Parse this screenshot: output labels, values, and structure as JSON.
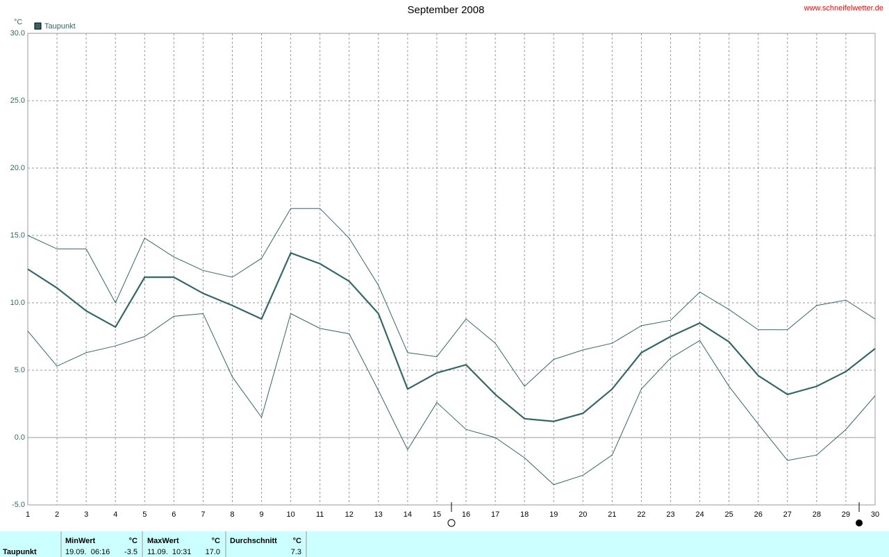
{
  "chart_data": {
    "type": "line",
    "title": "September 2008",
    "source": "www.schneifelwetter.de",
    "unit": "°C",
    "x": [
      1,
      2,
      3,
      4,
      5,
      6,
      7,
      8,
      9,
      10,
      11,
      12,
      13,
      14,
      15,
      16,
      17,
      18,
      19,
      20,
      21,
      22,
      23,
      24,
      25,
      26,
      27,
      28,
      29,
      30
    ],
    "series": [
      {
        "name": "Taupunkt",
        "color": "#336666",
        "values": [
          12.5,
          11.1,
          9.4,
          8.2,
          11.9,
          11.9,
          10.7,
          9.8,
          8.8,
          13.7,
          12.9,
          11.6,
          9.2,
          3.6,
          4.8,
          5.4,
          3.2,
          1.4,
          1.2,
          1.8,
          3.6,
          6.3,
          7.5,
          8.5,
          7.1,
          4.6,
          3.2,
          3.8,
          4.9,
          6.6
        ]
      },
      {
        "color": "#336666",
        "values": [
          15.0,
          14.0,
          14.0,
          10.0,
          14.8,
          13.4,
          12.4,
          11.9,
          13.3,
          17.0,
          17.0,
          14.8,
          11.3,
          6.3,
          6.0,
          8.8,
          7.0,
          3.8,
          5.8,
          6.5,
          7.0,
          8.3,
          8.7,
          10.8,
          9.5,
          8.0,
          8.0,
          9.8,
          10.2,
          8.8
        ]
      },
      {
        "color": "#336666",
        "values": [
          7.9,
          5.3,
          6.3,
          6.8,
          7.5,
          9.0,
          9.2,
          4.5,
          1.5,
          9.2,
          8.1,
          7.7,
          3.5,
          -0.9,
          2.6,
          0.6,
          0.0,
          -1.5,
          -3.5,
          -2.8,
          -1.3,
          3.6,
          5.9,
          7.2,
          3.8,
          1.0,
          -1.7,
          -1.3,
          0.6,
          3.1
        ]
      }
    ],
    "xlim": [
      1,
      30
    ],
    "xticks": [
      1,
      2,
      3,
      4,
      5,
      6,
      7,
      8,
      9,
      10,
      11,
      12,
      13,
      14,
      15,
      16,
      17,
      18,
      19,
      20,
      21,
      22,
      23,
      24,
      25,
      26,
      27,
      28,
      29,
      30
    ],
    "ylim": [
      -5,
      30
    ],
    "yticks": [
      {
        "value": -5,
        "label": "-5.0"
      },
      {
        "value": 0,
        "label": "0.0"
      },
      {
        "value": 5,
        "label": "5.0"
      },
      {
        "value": 10,
        "label": "10.0"
      },
      {
        "value": 15,
        "label": "15.0"
      },
      {
        "value": 20,
        "label": "20.0"
      },
      {
        "value": 25,
        "label": "25.0"
      },
      {
        "value": 30,
        "label": "30.0"
      }
    ],
    "grid": true
  },
  "footer": {
    "label": "Taupunkt",
    "min": {
      "title": "MinWert",
      "unit": "°C",
      "time": "19.09.  06:16",
      "value": "-3.5"
    },
    "max": {
      "title": "MaxWert",
      "unit": "°C",
      "time": "11.09.  10:31",
      "value": "17.0"
    },
    "avg": {
      "title": "Durchschnitt",
      "unit": "°C",
      "value": "7.3"
    }
  }
}
